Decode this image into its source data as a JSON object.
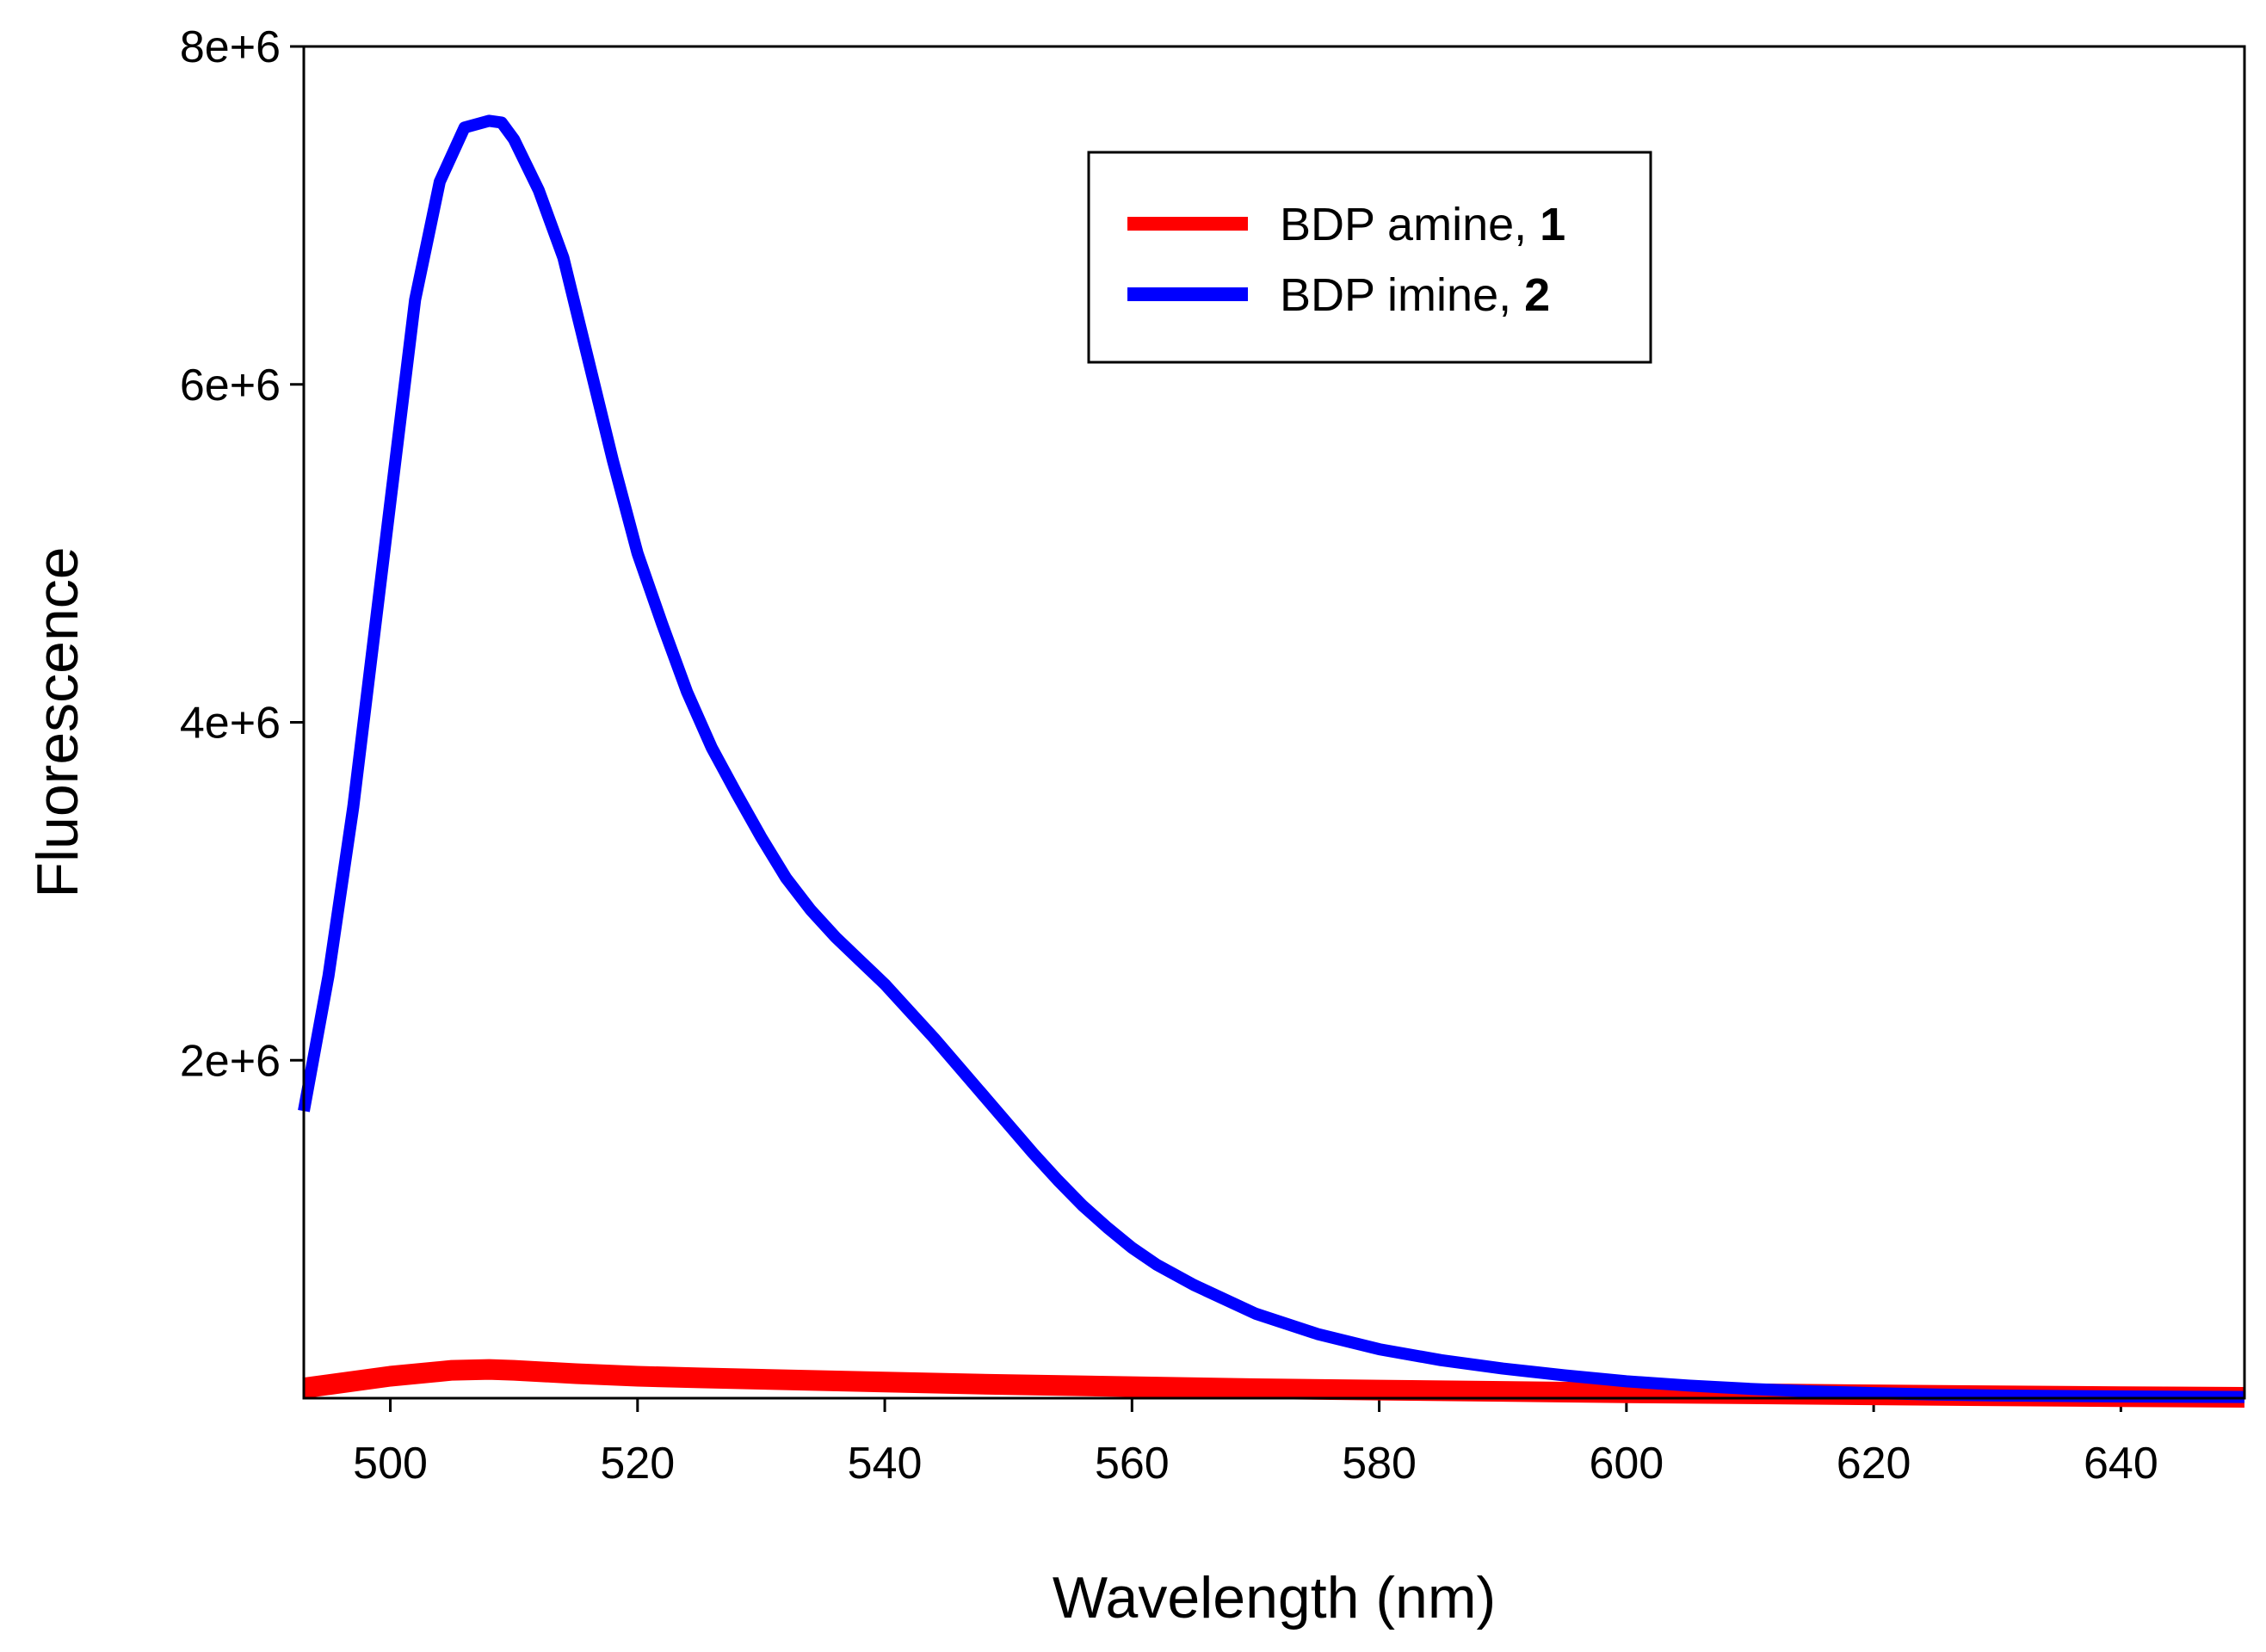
{
  "chart_data": {
    "type": "line",
    "title": "",
    "xlabel": "Wavelength (nm)",
    "ylabel": "Fluorescence",
    "xlim": [
      493,
      650
    ],
    "ylim": [
      0,
      8000000
    ],
    "x_ticks": [
      500,
      520,
      540,
      560,
      580,
      600,
      620,
      640
    ],
    "y_ticks": [
      2000000,
      4000000,
      6000000,
      8000000
    ],
    "x_tick_labels": [
      "500",
      "520",
      "540",
      "560",
      "580",
      "600",
      "620",
      "640"
    ],
    "y_tick_labels": [
      "2e+6",
      "4e+6",
      "6e+6",
      "8e+6"
    ],
    "grid": false,
    "legend_position": "top-center",
    "series": [
      {
        "name": "BDP amine, ",
        "name_bold": "1",
        "color": "#ff0000",
        "x": [
          493,
          495,
          500,
          505,
          508,
          510,
          515,
          520,
          525,
          530,
          540,
          550,
          560,
          570,
          580,
          590,
          600,
          610,
          620,
          630,
          640,
          650
        ],
        "values": [
          60000,
          80000,
          130000,
          165000,
          170000,
          165000,
          145000,
          130000,
          120000,
          112000,
          95000,
          80000,
          68000,
          56000,
          48000,
          40000,
          32000,
          26000,
          20000,
          14000,
          9000,
          5000
        ]
      },
      {
        "name": "BDP imine, ",
        "name_bold": "2",
        "color": "#0000ff",
        "x": [
          493,
          495,
          497,
          500,
          502,
          504,
          506,
          508,
          509,
          510,
          512,
          514,
          516,
          518,
          520,
          522,
          524,
          526,
          528,
          530,
          532,
          534,
          536,
          538,
          540,
          542,
          544,
          546,
          548,
          550,
          552,
          554,
          556,
          558,
          560,
          562,
          565,
          570,
          575,
          580,
          585,
          590,
          595,
          600,
          605,
          610,
          615,
          620,
          625,
          630,
          640,
          650
        ],
        "values": [
          1700000,
          2500000,
          3500000,
          5300000,
          6500000,
          7200000,
          7520000,
          7560000,
          7550000,
          7450000,
          7150000,
          6750000,
          6150000,
          5550000,
          5000000,
          4580000,
          4180000,
          3850000,
          3580000,
          3320000,
          3080000,
          2890000,
          2730000,
          2590000,
          2450000,
          2290000,
          2130000,
          1960000,
          1790000,
          1620000,
          1450000,
          1290000,
          1140000,
          1010000,
          890000,
          790000,
          670000,
          500000,
          380000,
          290000,
          225000,
          175000,
          135000,
          100000,
          75000,
          55000,
          40000,
          30000,
          22000,
          16000,
          10000,
          7000
        ]
      }
    ]
  }
}
